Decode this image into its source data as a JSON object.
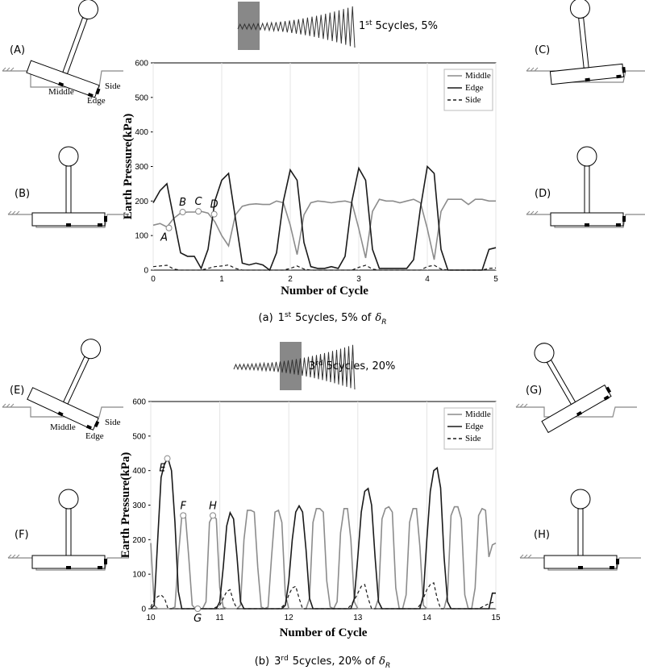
{
  "chart_data": [
    {
      "type": "line",
      "y_label": "Earth Pressure(kPa)",
      "x_label": "Number of Cycle",
      "schematic": {
        "number": "1",
        "ordinal": "st",
        "text": "5cycles, 5%"
      },
      "caption": {
        "panel": "(a)",
        "number": "1",
        "ordinal": "st",
        "text": "5cycles, 5% of",
        "symbol": "δ",
        "subscript": "R"
      },
      "xlim": [
        0,
        5
      ],
      "xticks": [
        0,
        1,
        2,
        3,
        4,
        5
      ],
      "ylim": [
        0,
        600
      ],
      "yticks": [
        0,
        100,
        200,
        300,
        400,
        500,
        600
      ],
      "grid": true,
      "legend": "upper right",
      "x": [
        0,
        0.1,
        0.2,
        0.3,
        0.4,
        0.5,
        0.6,
        0.7,
        0.8,
        0.9,
        1,
        1.1,
        1.2,
        1.3,
        1.4,
        1.5,
        1.6,
        1.7,
        1.8,
        1.9,
        2,
        2.1,
        2.2,
        2.3,
        2.4,
        2.5,
        2.6,
        2.7,
        2.8,
        2.9,
        3,
        3.1,
        3.2,
        3.3,
        3.4,
        3.5,
        3.6,
        3.7,
        3.8,
        3.9,
        4,
        4.1,
        4.2,
        4.3,
        4.4,
        4.5,
        4.6,
        4.7,
        4.8,
        4.9,
        5
      ],
      "series": [
        {
          "name": "Middle",
          "color": "#8c8c8c",
          "dashed": false,
          "values": [
            130,
            135,
            125,
            150,
            165,
            168,
            168,
            170,
            165,
            140,
            100,
            70,
            160,
            185,
            190,
            192,
            190,
            190,
            200,
            195,
            130,
            45,
            160,
            195,
            200,
            198,
            195,
            198,
            200,
            195,
            120,
            35,
            170,
            205,
            200,
            200,
            195,
            200,
            205,
            195,
            120,
            30,
            170,
            205,
            205,
            205,
            190,
            205,
            205,
            200,
            200
          ]
        },
        {
          "name": "Edge",
          "color": "#1a1a1a",
          "dashed": false,
          "values": [
            195,
            230,
            250,
            150,
            50,
            40,
            40,
            5,
            60,
            200,
            260,
            280,
            150,
            20,
            15,
            20,
            15,
            0,
            50,
            200,
            290,
            260,
            80,
            10,
            5,
            5,
            10,
            5,
            40,
            200,
            295,
            260,
            60,
            5,
            5,
            5,
            5,
            5,
            30,
            180,
            300,
            280,
            60,
            0,
            0,
            0,
            0,
            0,
            0,
            60,
            65
          ]
        },
        {
          "name": "Side",
          "color": "#1a1a1a",
          "dashed": true,
          "values": [
            10,
            12,
            14,
            3,
            0,
            0,
            0,
            0,
            5,
            10,
            12,
            15,
            5,
            0,
            0,
            0,
            0,
            0,
            0,
            0,
            5,
            12,
            3,
            0,
            0,
            0,
            0,
            0,
            0,
            0,
            8,
            14,
            3,
            0,
            0,
            0,
            0,
            0,
            0,
            0,
            10,
            14,
            3,
            0,
            0,
            0,
            0,
            0,
            0,
            5,
            6
          ]
        }
      ],
      "annotations": [
        {
          "label": "A",
          "x": 0.23,
          "y": 122
        },
        {
          "label": "B",
          "x": 0.43,
          "y": 168
        },
        {
          "label": "C",
          "x": 0.66,
          "y": 170
        },
        {
          "label": "D",
          "x": 0.89,
          "y": 162
        }
      ],
      "diagrams": [
        {
          "label": "(A)",
          "texts": [
            "Middle",
            "Edge",
            "Side"
          ]
        },
        {
          "label": "(B)"
        },
        {
          "label": "(C)"
        },
        {
          "label": "(D)"
        }
      ]
    },
    {
      "type": "line",
      "y_label": "Earth Pressure(kPa)",
      "x_label": "Number of Cycle",
      "schematic": {
        "number": "3",
        "ordinal": "rd",
        "text": "5cycles, 20%"
      },
      "caption": {
        "panel": "(b)",
        "number": "3",
        "ordinal": "rd",
        "text": "5cycles, 20% of",
        "symbol": "δ",
        "subscript": "R"
      },
      "xlim": [
        10,
        15
      ],
      "xticks": [
        10,
        11,
        12,
        13,
        14,
        15
      ],
      "ylim": [
        0,
        600
      ],
      "yticks": [
        0,
        100,
        200,
        300,
        400,
        500,
        600
      ],
      "grid": true,
      "legend": "upper right",
      "x": [
        10,
        10.05,
        10.1,
        10.15,
        10.2,
        10.25,
        10.3,
        10.35,
        10.4,
        10.45,
        10.5,
        10.55,
        10.6,
        10.65,
        10.7,
        10.75,
        10.8,
        10.85,
        10.9,
        10.95,
        11,
        11.05,
        11.1,
        11.15,
        11.2,
        11.25,
        11.3,
        11.35,
        11.4,
        11.45,
        11.5,
        11.55,
        11.6,
        11.65,
        11.7,
        11.75,
        11.8,
        11.85,
        11.9,
        11.95,
        12,
        12.05,
        12.1,
        12.15,
        12.2,
        12.25,
        12.3,
        12.35,
        12.4,
        12.45,
        12.5,
        12.55,
        12.6,
        12.65,
        12.7,
        12.75,
        12.8,
        12.85,
        12.9,
        12.95,
        13,
        13.05,
        13.1,
        13.15,
        13.2,
        13.25,
        13.3,
        13.35,
        13.4,
        13.45,
        13.5,
        13.55,
        13.6,
        13.65,
        13.7,
        13.75,
        13.8,
        13.85,
        13.9,
        13.95,
        14,
        14.05,
        14.1,
        14.15,
        14.2,
        14.25,
        14.3,
        14.35,
        14.4,
        14.45,
        14.5,
        14.55,
        14.6,
        14.65,
        14.7,
        14.75,
        14.8,
        14.85,
        14.9,
        14.95,
        15
      ],
      "series": [
        {
          "name": "Middle",
          "color": "#8c8c8c",
          "dashed": false,
          "values": [
            190,
            10,
            0,
            0,
            0,
            0,
            0,
            5,
            150,
            270,
            275,
            150,
            10,
            0,
            0,
            0,
            20,
            250,
            270,
            260,
            60,
            5,
            0,
            0,
            0,
            0,
            10,
            200,
            285,
            285,
            280,
            120,
            5,
            0,
            5,
            150,
            280,
            285,
            250,
            40,
            0,
            0,
            0,
            0,
            0,
            0,
            30,
            250,
            290,
            290,
            280,
            80,
            5,
            0,
            20,
            220,
            290,
            290,
            200,
            20,
            0,
            0,
            0,
            0,
            0,
            0,
            30,
            260,
            290,
            295,
            280,
            60,
            0,
            0,
            40,
            250,
            290,
            290,
            180,
            10,
            0,
            0,
            0,
            0,
            0,
            0,
            40,
            270,
            295,
            295,
            260,
            40,
            0,
            0,
            60,
            270,
            290,
            285,
            150,
            185,
            190
          ]
        },
        {
          "name": "Edge",
          "color": "#1a1a1a",
          "dashed": false,
          "values": [
            0,
            10,
            200,
            380,
            420,
            435,
            400,
            250,
            50,
            0,
            0,
            0,
            0,
            0,
            0,
            0,
            0,
            0,
            0,
            0,
            20,
            120,
            240,
            278,
            260,
            150,
            20,
            0,
            0,
            0,
            0,
            0,
            0,
            0,
            0,
            0,
            0,
            0,
            0,
            10,
            80,
            200,
            280,
            298,
            280,
            170,
            30,
            0,
            0,
            0,
            0,
            0,
            0,
            0,
            0,
            0,
            0,
            0,
            0,
            30,
            150,
            280,
            340,
            348,
            300,
            150,
            20,
            0,
            0,
            0,
            0,
            0,
            0,
            0,
            0,
            0,
            0,
            0,
            0,
            40,
            200,
            340,
            400,
            408,
            350,
            150,
            20,
            0,
            0,
            0,
            0,
            0,
            0,
            0,
            0,
            0,
            0,
            0,
            0,
            45,
            45
          ]
        },
        {
          "name": "Side",
          "color": "#1a1a1a",
          "dashed": true,
          "values": [
            5,
            25,
            35,
            40,
            30,
            0,
            0,
            0,
            0,
            0,
            0,
            0,
            0,
            0,
            0,
            0,
            0,
            0,
            0,
            5,
            10,
            30,
            50,
            55,
            20,
            0,
            0,
            0,
            0,
            0,
            0,
            0,
            0,
            0,
            0,
            0,
            0,
            0,
            5,
            15,
            40,
            60,
            65,
            30,
            0,
            0,
            0,
            0,
            0,
            0,
            0,
            0,
            0,
            0,
            0,
            0,
            0,
            0,
            10,
            25,
            45,
            65,
            70,
            30,
            0,
            0,
            0,
            0,
            0,
            0,
            0,
            0,
            0,
            0,
            0,
            0,
            0,
            0,
            10,
            30,
            55,
            70,
            75,
            30,
            0,
            0,
            0,
            0,
            0,
            0,
            0,
            0,
            0,
            0,
            0,
            0,
            5,
            10,
            15,
            18,
            18
          ]
        }
      ],
      "annotations": [
        {
          "label": "E",
          "x": 10.24,
          "y": 435
        },
        {
          "label": "F",
          "x": 10.47,
          "y": 270
        },
        {
          "label": "G",
          "x": 10.68,
          "y": 0
        },
        {
          "label": "H",
          "x": 10.9,
          "y": 270
        }
      ],
      "diagrams": [
        {
          "label": "(E)",
          "texts": [
            "Middle",
            "Edge",
            "Side"
          ]
        },
        {
          "label": "(F)"
        },
        {
          "label": "(G)"
        },
        {
          "label": "(H)"
        }
      ]
    }
  ]
}
